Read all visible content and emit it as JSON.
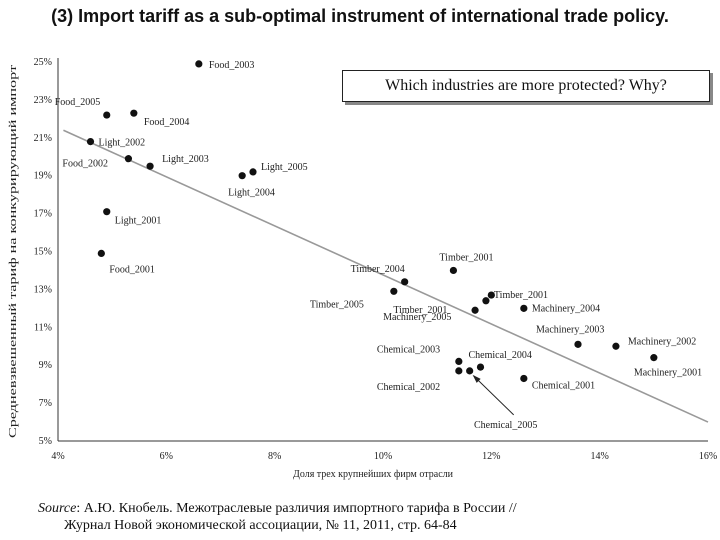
{
  "slide": {
    "title": "(3) Import tariff as a sub-optimal instrument of international trade policy.",
    "callout": "Which industries are more protected? Why?",
    "source_label": "Source",
    "source_line1": ": А.Ю. Кнобель. Межотраслевые различия импортного тарифа в России //",
    "source_line2": "Журнал Новой экономической ассоциации, № 11, 2011, стр. 64-84"
  },
  "chart_data": {
    "type": "scatter",
    "xlabel": "Доля трех крупнейших фирм отрасли",
    "ylabel": "Средневзвешенный тариф на конкурирующий импорт",
    "xlim": [
      4,
      16
    ],
    "ylim": [
      5,
      25
    ],
    "x_ticks": [
      "4%",
      "6%",
      "8%",
      "10%",
      "12%",
      "14%",
      "16%"
    ],
    "y_ticks": [
      "5%",
      "7%",
      "9%",
      "11%",
      "13%",
      "15%",
      "17%",
      "19%",
      "21%",
      "23%",
      "25%"
    ],
    "trendline": {
      "start": [
        4.1,
        21.4
      ],
      "end": [
        16.0,
        6.0
      ]
    },
    "points": [
      {
        "name": "Food_2003",
        "x": 6.6,
        "y": 24.9
      },
      {
        "name": "Food_2005",
        "x": 4.9,
        "y": 22.2
      },
      {
        "name": "Food_2004",
        "x": 5.4,
        "y": 22.3
      },
      {
        "name": "Light_2002",
        "x": 4.6,
        "y": 20.8
      },
      {
        "name": "Light_2003",
        "x": 5.7,
        "y": 19.5
      },
      {
        "name": "Food_2002",
        "x": 5.3,
        "y": 19.9
      },
      {
        "name": "Light_2005",
        "x": 7.6,
        "y": 19.2
      },
      {
        "name": "Light_2004",
        "x": 7.4,
        "y": 19.0
      },
      {
        "name": "Light_2001",
        "x": 4.9,
        "y": 17.1
      },
      {
        "name": "Food_2001",
        "x": 4.8,
        "y": 14.9
      },
      {
        "name": "Timber_2001",
        "x": 11.3,
        "y": 14.0
      },
      {
        "name": "Timber_2004",
        "x": 10.4,
        "y": 13.4
      },
      {
        "name": "Timber_2005",
        "x": 10.2,
        "y": 12.9
      },
      {
        "name": "Timber_2001",
        "x": 12.0,
        "y": 12.7
      },
      {
        "name": "Timber_2001",
        "x": 11.9,
        "y": 12.4
      },
      {
        "name": "Machinery_2004",
        "x": 12.6,
        "y": 12.0
      },
      {
        "name": "Machinery_2005",
        "x": 11.7,
        "y": 11.9
      },
      {
        "name": "Machinery_2003",
        "x": 13.6,
        "y": 10.1
      },
      {
        "name": "Machinery_2002",
        "x": 14.3,
        "y": 10.0
      },
      {
        "name": "Machinery_2001",
        "x": 15.0,
        "y": 9.4
      },
      {
        "name": "Chemical_2003",
        "x": 11.4,
        "y": 9.2
      },
      {
        "name": "Chemical_2004",
        "x": 11.8,
        "y": 8.9
      },
      {
        "name": "Chemical_2002",
        "x": 11.4,
        "y": 8.7
      },
      {
        "name": "Chemical_2005",
        "x": 11.6,
        "y": 8.7
      },
      {
        "name": "Chemical_2001",
        "x": 12.6,
        "y": 8.3
      }
    ],
    "annotation": {
      "text": "Chemical_2005",
      "points_to": "Chemical_2005"
    }
  }
}
